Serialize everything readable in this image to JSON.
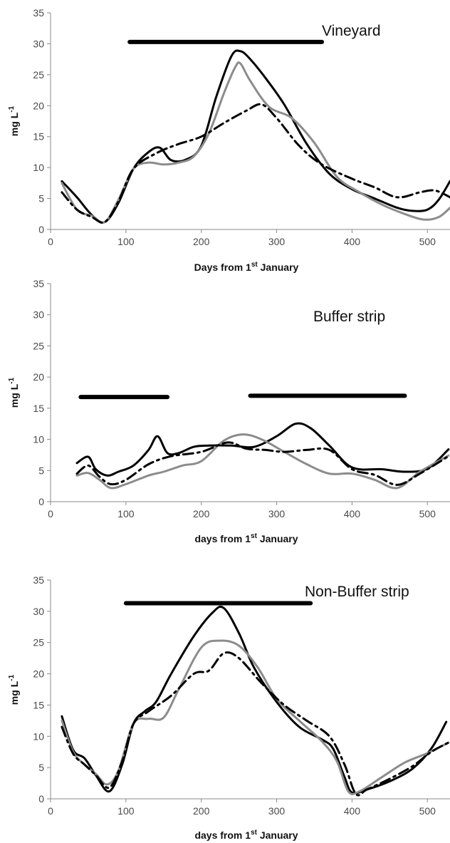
{
  "chart_data": [
    {
      "type": "line",
      "title": "Vineyard",
      "xlabel": "Days from 1",
      "xlabel_sup": "st",
      "xlabel_end": "  January",
      "ylabel": "mg L",
      "ylabel_sup": "-1",
      "xlim": [
        0,
        530
      ],
      "ylim": [
        0,
        35
      ],
      "xticks": [
        "0",
        "100",
        "200",
        "300",
        "400",
        "500"
      ],
      "yticks": [
        "0",
        "5",
        "10",
        "15",
        "20",
        "25",
        "30",
        "35"
      ],
      "grid": false,
      "series": [
        {
          "style": "solid",
          "color": "#000000",
          "x": [
            15,
            35,
            55,
            72,
            90,
            110,
            130,
            145,
            160,
            180,
            200,
            220,
            240,
            252,
            265,
            285,
            310,
            340,
            370,
            400,
            430,
            460,
            480,
            500,
            515,
            530
          ],
          "y": [
            7.8,
            5.2,
            2.3,
            1.2,
            4.3,
            9.8,
            12.5,
            13.2,
            11.2,
            11.3,
            13.5,
            21.5,
            28.0,
            28.8,
            27.5,
            24.5,
            20.2,
            13.8,
            9.0,
            6.5,
            5.0,
            3.5,
            3.0,
            3.2,
            4.8,
            7.8
          ]
        },
        {
          "style": "solid",
          "color": "#8c8c8c",
          "x": [
            15,
            35,
            55,
            72,
            90,
            110,
            130,
            150,
            170,
            190,
            210,
            230,
            245,
            252,
            265,
            290,
            320,
            350,
            380,
            410,
            440,
            470,
            495,
            515,
            530
          ],
          "y": [
            7.5,
            3.2,
            2.2,
            1.2,
            4.8,
            9.8,
            10.8,
            10.5,
            10.8,
            11.8,
            15.5,
            22.0,
            26.2,
            26.8,
            24.0,
            19.8,
            18.0,
            14.0,
            8.5,
            6.0,
            4.0,
            2.5,
            1.6,
            2.0,
            3.5
          ]
        },
        {
          "style": "dashdot",
          "color": "#000000",
          "x": [
            15,
            35,
            55,
            72,
            90,
            110,
            140,
            170,
            200,
            230,
            260,
            280,
            300,
            330,
            360,
            400,
            430,
            460,
            490,
            510,
            530
          ],
          "y": [
            6.0,
            3.2,
            2.0,
            1.2,
            4.5,
            9.8,
            12.3,
            13.8,
            15.0,
            17.2,
            19.2,
            20.2,
            18.0,
            13.5,
            10.5,
            8.2,
            6.8,
            5.2,
            6.0,
            6.3,
            5.2
          ]
        }
      ],
      "bars": [
        {
          "x1": 105,
          "x2": 360,
          "y": 30.3
        }
      ]
    },
    {
      "type": "line",
      "title": "Buffer strip",
      "xlabel": "days from 1",
      "xlabel_sup": "st",
      "xlabel_end": " January",
      "ylabel": "mg L",
      "ylabel_sup": "-1",
      "xlim": [
        0,
        530
      ],
      "ylim": [
        0,
        35
      ],
      "xticks": [
        "0",
        "100",
        "200",
        "300",
        "400",
        "500"
      ],
      "yticks": [
        "0",
        "5",
        "10",
        "15",
        "20",
        "25",
        "30",
        "35"
      ],
      "grid": false,
      "series": [
        {
          "style": "solid",
          "color": "#000000",
          "x": [
            35,
            50,
            60,
            75,
            90,
            110,
            130,
            142,
            155,
            170,
            190,
            210,
            240,
            270,
            300,
            325,
            345,
            370,
            400,
            440,
            470,
            500,
            528
          ],
          "y": [
            6.2,
            7.2,
            5.2,
            4.2,
            4.8,
            5.8,
            8.3,
            10.5,
            7.8,
            7.8,
            8.8,
            9.0,
            9.0,
            8.8,
            10.5,
            12.5,
            11.8,
            9.0,
            5.5,
            5.2,
            4.8,
            5.3,
            8.4
          ]
        },
        {
          "style": "solid",
          "color": "#8c8c8c",
          "x": [
            35,
            50,
            65,
            80,
            100,
            130,
            150,
            175,
            200,
            230,
            255,
            280,
            310,
            340,
            370,
            400,
            430,
            460,
            490,
            528
          ],
          "y": [
            4.2,
            4.6,
            3.5,
            2.2,
            2.8,
            4.2,
            4.8,
            5.8,
            6.5,
            9.8,
            10.8,
            10.0,
            8.0,
            6.0,
            4.5,
            4.5,
            3.5,
            2.2,
            4.8,
            7.4
          ]
        },
        {
          "style": "dashdot",
          "color": "#000000",
          "x": [
            35,
            50,
            65,
            80,
            100,
            130,
            160,
            200,
            235,
            260,
            285,
            310,
            340,
            370,
            400,
            430,
            460,
            490,
            528
          ],
          "y": [
            4.5,
            5.8,
            4.0,
            2.8,
            3.5,
            6.0,
            7.3,
            8.0,
            9.5,
            8.5,
            8.3,
            8.0,
            8.3,
            8.3,
            5.2,
            4.3,
            2.7,
            4.5,
            7.3
          ]
        }
      ],
      "bars": [
        {
          "x1": 40,
          "x2": 155,
          "y": 16.8
        },
        {
          "x1": 265,
          "x2": 470,
          "y": 17.0
        }
      ]
    },
    {
      "type": "line",
      "title": "Non-Buffer strip",
      "xlabel": "days from 1",
      "xlabel_sup": "st",
      "xlabel_end": " January",
      "ylabel": "mg L",
      "ylabel_sup": "-1",
      "xlim": [
        0,
        530
      ],
      "ylim": [
        0,
        35
      ],
      "xticks": [
        "0",
        "100",
        "200",
        "300",
        "400",
        "500"
      ],
      "yticks": [
        "0",
        "5",
        "10",
        "15",
        "20",
        "25",
        "30",
        "35"
      ],
      "grid": false,
      "series": [
        {
          "style": "solid",
          "color": "#000000",
          "x": [
            15,
            30,
            45,
            60,
            78,
            95,
            110,
            125,
            140,
            160,
            190,
            215,
            230,
            250,
            270,
            300,
            330,
            360,
            375,
            390,
            400,
            420,
            450,
            480,
            505,
            525
          ],
          "y": [
            13.2,
            7.8,
            6.5,
            3.8,
            1.2,
            5.5,
            12.0,
            14.0,
            15.5,
            20.0,
            26.0,
            29.8,
            30.5,
            26.5,
            21.0,
            15.5,
            11.5,
            9.5,
            8.0,
            3.5,
            1.0,
            1.5,
            2.8,
            4.8,
            8.0,
            12.3
          ]
        },
        {
          "style": "solid",
          "color": "#8c8c8c",
          "x": [
            15,
            30,
            45,
            60,
            75,
            90,
            110,
            130,
            150,
            170,
            200,
            225,
            250,
            275,
            300,
            330,
            360,
            380,
            395,
            410,
            440,
            470,
            500,
            528
          ],
          "y": [
            12.5,
            7.5,
            5.5,
            4.0,
            2.3,
            4.5,
            12.0,
            12.8,
            13.0,
            17.5,
            24.2,
            25.3,
            24.5,
            21.0,
            16.0,
            12.5,
            9.2,
            6.0,
            1.2,
            1.2,
            3.5,
            5.8,
            7.3,
            9.0
          ]
        },
        {
          "style": "dashdot",
          "color": "#000000",
          "x": [
            15,
            30,
            45,
            60,
            78,
            95,
            110,
            130,
            160,
            190,
            210,
            230,
            250,
            280,
            310,
            340,
            370,
            390,
            405,
            420,
            450,
            480,
            505,
            528
          ],
          "y": [
            11.5,
            7.2,
            5.5,
            3.8,
            1.8,
            6.0,
            12.0,
            14.0,
            16.5,
            20.0,
            20.5,
            23.3,
            22.5,
            18.5,
            15.0,
            12.5,
            10.0,
            5.5,
            0.8,
            1.5,
            3.2,
            5.2,
            7.5,
            9.0
          ]
        }
      ],
      "bars": [
        {
          "x1": 100,
          "x2": 345,
          "y": 31.3
        }
      ]
    }
  ]
}
